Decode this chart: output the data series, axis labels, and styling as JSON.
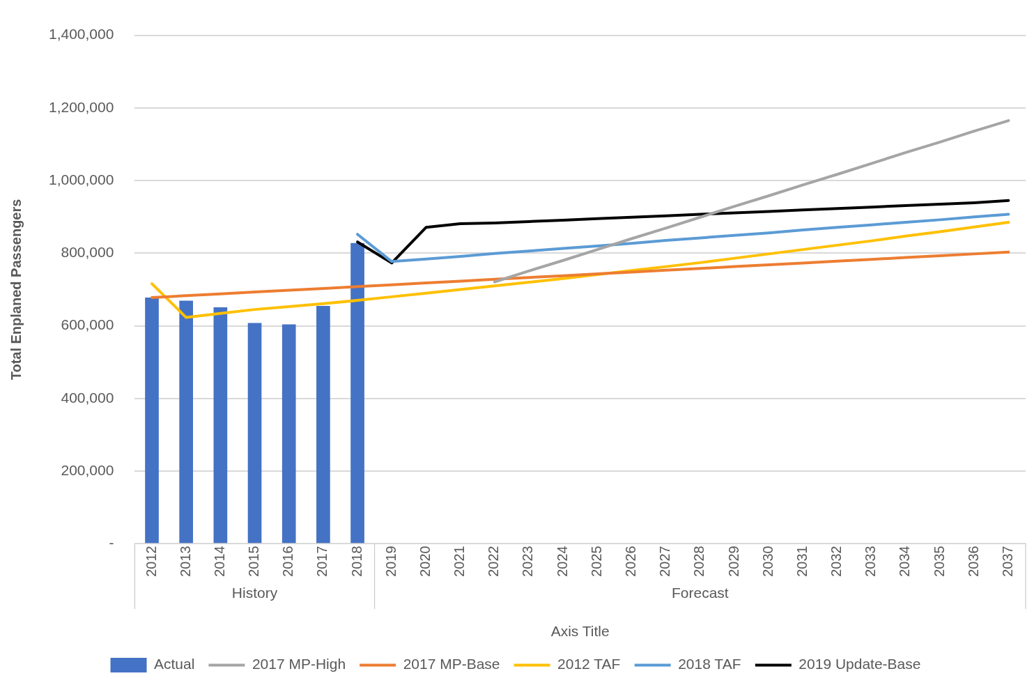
{
  "chart_data": {
    "type": "bar",
    "xlabel": "Axis Title",
    "ylabel": "Total Enplaned Passengers",
    "categories": [
      "2012",
      "2013",
      "2014",
      "2015",
      "2016",
      "2017",
      "2018",
      "2019",
      "2020",
      "2021",
      "2022",
      "2023",
      "2024",
      "2025",
      "2026",
      "2027",
      "2028",
      "2029",
      "2030",
      "2031",
      "2032",
      "2033",
      "2034",
      "2035",
      "2036",
      "2037"
    ],
    "series": [
      {
        "name": "Actual",
        "color": "#4472c4",
        "values": [
          678000,
          669000,
          651000,
          608000,
          604000,
          655000,
          828000,
          null,
          null,
          null,
          null,
          null,
          null,
          null,
          null,
          null,
          null,
          null,
          null,
          null,
          null,
          null,
          null,
          null,
          null,
          null
        ]
      },
      {
        "name": "2017 MP-High",
        "type": "line",
        "color": "#a5a5a5",
        "values": [
          null,
          null,
          null,
          null,
          null,
          null,
          null,
          null,
          null,
          null,
          721000,
          751000,
          780000,
          810000,
          840000,
          869000,
          899000,
          929000,
          958000,
          988000,
          1017000,
          1047000,
          1077000,
          1106000,
          1136000,
          1165000
        ]
      },
      {
        "name": "2017 MP-Base",
        "type": "line",
        "color": "#ed7d31",
        "values": [
          678000,
          683000,
          688000,
          693000,
          698000,
          703000,
          708000,
          713000,
          718000,
          723000,
          728000,
          733000,
          738000,
          743000,
          748000,
          753000,
          758000,
          763000,
          768000,
          773000,
          778000,
          783000,
          788000,
          793000,
          798000,
          803000
        ]
      },
      {
        "name": "2012 TAF",
        "type": "line",
        "color": "#ffc000",
        "values": [
          716000,
          623000,
          634000,
          645000,
          653000,
          661000,
          670000,
          680000,
          690000,
          700000,
          710000,
          720000,
          730000,
          741000,
          752000,
          763000,
          774000,
          786000,
          798000,
          810000,
          822000,
          834000,
          847000,
          859000,
          872000,
          885000
        ]
      },
      {
        "name": "2018 TAF",
        "type": "line",
        "color": "#5b9bd5",
        "values": [
          null,
          null,
          null,
          null,
          null,
          null,
          852000,
          777000,
          784000,
          791000,
          799000,
          806000,
          813000,
          820000,
          827000,
          835000,
          842000,
          849000,
          856000,
          864000,
          871000,
          878000,
          885000,
          892000,
          900000,
          907000
        ]
      },
      {
        "name": "2019 Update-Base",
        "type": "line",
        "color": "#000000",
        "values": [
          null,
          null,
          null,
          null,
          null,
          null,
          831000,
          773000,
          871000,
          881000,
          883000,
          887000,
          891000,
          895000,
          899000,
          903000,
          907000,
          911000,
          915000,
          919000,
          923000,
          927000,
          931000,
          935000,
          939000,
          945000
        ]
      }
    ],
    "ylim": [
      0,
      1400000
    ],
    "yticks": [
      {
        "value": 0,
        "label": "-"
      },
      {
        "value": 200000,
        "label": "200,000"
      },
      {
        "value": 400000,
        "label": "400,000"
      },
      {
        "value": 600000,
        "label": "600,000"
      },
      {
        "value": 800000,
        "label": "800,000"
      },
      {
        "value": 1000000,
        "label": "1,000,000"
      },
      {
        "value": 1200000,
        "label": "1,200,000"
      },
      {
        "value": 1400000,
        "label": "1,400,000"
      }
    ],
    "grid": "y",
    "legend": "bottom",
    "marker": "none",
    "line_style": "solid",
    "annotations": [
      "History",
      "Forecast"
    ]
  }
}
